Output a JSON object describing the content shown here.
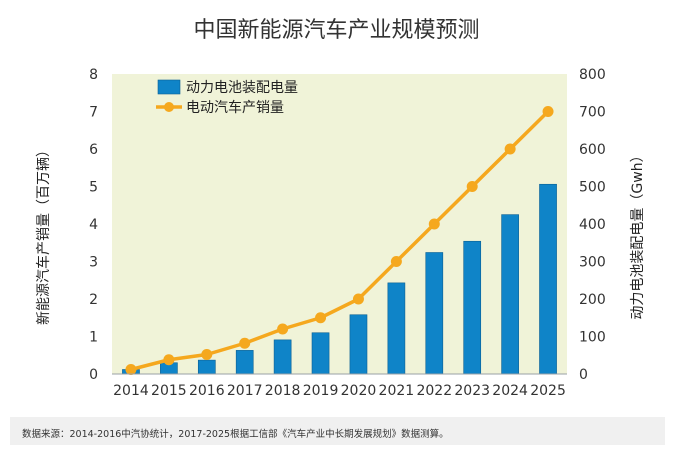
{
  "chart_data": {
    "type": "bar+line",
    "title": "中国新能源汽车产业规模预测",
    "categories": [
      "2014",
      "2015",
      "2016",
      "2017",
      "2018",
      "2019",
      "2020",
      "2021",
      "2022",
      "2023",
      "2024",
      "2025"
    ],
    "series": [
      {
        "name": "动力电池装配电量",
        "type": "bar",
        "axis": "right",
        "color": "#0f84c8",
        "values": [
          12,
          30,
          37,
          63,
          91,
          110,
          158,
          243,
          324,
          354,
          425,
          506
        ]
      },
      {
        "name": "电动汽车产销量",
        "type": "line",
        "axis": "left",
        "color": "#f5a81e",
        "values": [
          0.12,
          0.38,
          0.52,
          0.82,
          1.2,
          1.5,
          2.0,
          3.0,
          4.0,
          5.0,
          6.0,
          7.0
        ]
      }
    ],
    "y_left": {
      "label": "新能源汽车产销量（百万辆）",
      "range": [
        0,
        8
      ],
      "ticks": [
        "0",
        "1",
        "2",
        "3",
        "4",
        "5",
        "6",
        "7",
        "8"
      ]
    },
    "y_right": {
      "label": "动力电池装配电量（Gwh）",
      "range": [
        0,
        800
      ],
      "ticks": [
        "0",
        "100",
        "200",
        "300",
        "400",
        "500",
        "600",
        "700",
        "800"
      ]
    },
    "legend_position": "top-left",
    "grid": false,
    "plot_background": "#f0f3d8"
  },
  "source_note": "数据来源：2014-2016中汽协统计，2017-2025根据工信部《汽车产业中长期发展规划》数据测算。"
}
